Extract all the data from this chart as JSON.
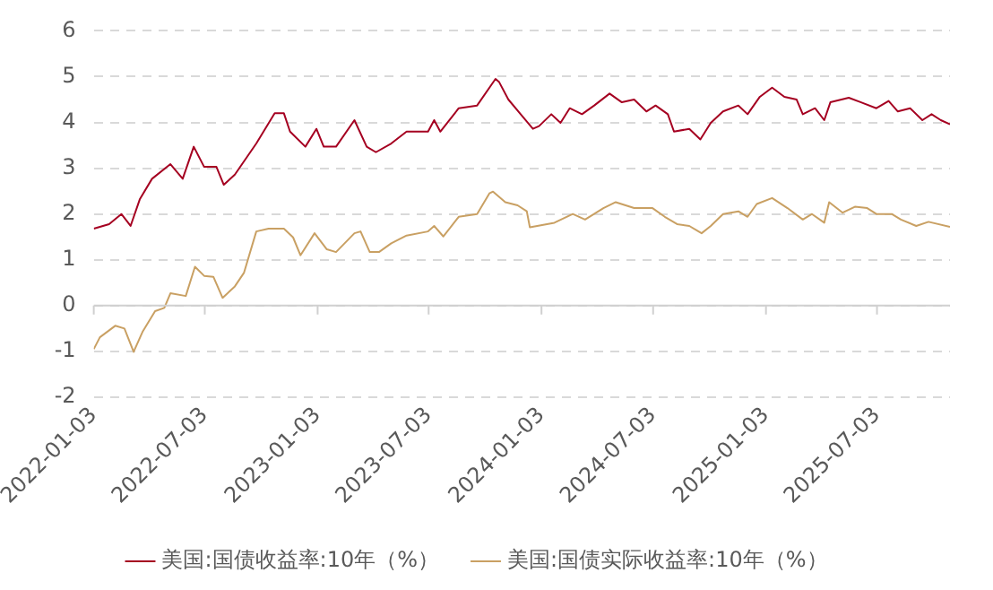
{
  "chart_data": {
    "type": "line",
    "xlim": [
      "2022-01-03",
      "2025-10-30"
    ],
    "xticks": [
      "2022-01-03",
      "2022-07-03",
      "2023-01-03",
      "2023-07-03",
      "2024-01-03",
      "2024-07-03",
      "2025-01-03",
      "2025-07-03"
    ],
    "ylim": [
      -2,
      6
    ],
    "yticks": [
      -2,
      -1,
      0,
      1,
      2,
      3,
      4,
      5,
      6
    ],
    "grid": "y",
    "legend": "bottom",
    "marker": "none",
    "line_style": "solid",
    "series": [
      {
        "name": "美国:国债收益率:10年（%）",
        "color": "#a50021",
        "x": [
          "2022-01-03",
          "2022-01-28",
          "2022-02-17",
          "2022-03-04",
          "2022-03-19",
          "2022-04-08",
          "2022-05-08",
          "2022-05-28",
          "2022-06-15",
          "2022-07-02",
          "2022-07-22",
          "2022-08-03",
          "2022-08-21",
          "2022-09-25",
          "2022-10-25",
          "2022-11-09",
          "2022-11-19",
          "2022-12-14",
          "2023-01-01",
          "2023-01-13",
          "2023-02-02",
          "2023-03-04",
          "2023-03-24",
          "2023-04-08",
          "2023-05-03",
          "2023-05-28",
          "2023-07-02",
          "2023-07-12",
          "2023-07-22",
          "2023-08-21",
          "2023-09-20",
          "2023-10-20",
          "2023-10-26",
          "2023-11-10",
          "2023-11-30",
          "2023-12-20",
          "2023-12-30",
          "2024-01-19",
          "2024-02-03",
          "2024-02-18",
          "2024-03-09",
          "2024-03-29",
          "2024-04-23",
          "2024-05-13",
          "2024-06-02",
          "2024-06-22",
          "2024-07-07",
          "2024-07-27",
          "2024-08-06",
          "2024-08-31",
          "2024-09-18",
          "2024-10-05",
          "2024-10-25",
          "2024-11-19",
          "2024-12-04",
          "2024-12-24",
          "2025-01-13",
          "2025-02-02",
          "2025-02-22",
          "2025-03-04",
          "2025-03-24",
          "2025-04-08",
          "2025-04-18",
          "2025-05-18",
          "2025-06-07",
          "2025-07-02",
          "2025-07-22",
          "2025-08-06",
          "2025-08-26",
          "2025-09-15",
          "2025-09-30",
          "2025-10-15",
          "2025-10-30"
        ],
        "values": [
          1.68,
          1.78,
          2.0,
          1.74,
          2.32,
          2.77,
          3.09,
          2.77,
          3.47,
          3.03,
          3.03,
          2.64,
          2.86,
          3.54,
          4.2,
          4.2,
          3.8,
          3.47,
          3.86,
          3.47,
          3.47,
          4.05,
          3.47,
          3.35,
          3.54,
          3.8,
          3.8,
          4.05,
          3.8,
          4.31,
          4.37,
          4.95,
          4.88,
          4.5,
          4.18,
          3.86,
          3.92,
          4.18,
          3.99,
          4.31,
          4.18,
          4.37,
          4.63,
          4.44,
          4.5,
          4.24,
          4.37,
          4.18,
          3.8,
          3.86,
          3.63,
          3.99,
          4.24,
          4.37,
          4.18,
          4.56,
          4.76,
          4.56,
          4.5,
          4.18,
          4.31,
          4.05,
          4.44,
          4.54,
          4.44,
          4.31,
          4.47,
          4.24,
          4.31,
          4.05,
          4.18,
          4.05,
          3.96
        ]
      },
      {
        "name": "美国:国债实际收益率:10年（%）",
        "color": "#c9a063",
        "x": [
          "2022-01-03",
          "2022-01-13",
          "2022-02-07",
          "2022-02-22",
          "2022-03-09",
          "2022-03-24",
          "2022-04-13",
          "2022-04-28",
          "2022-05-08",
          "2022-06-02",
          "2022-06-17",
          "2022-07-02",
          "2022-07-17",
          "2022-08-01",
          "2022-08-21",
          "2022-09-05",
          "2022-09-25",
          "2022-10-15",
          "2022-11-09",
          "2022-11-24",
          "2022-12-06",
          "2022-12-29",
          "2023-01-18",
          "2023-02-02",
          "2023-03-04",
          "2023-03-14",
          "2023-03-29",
          "2023-04-13",
          "2023-05-03",
          "2023-05-28",
          "2023-07-02",
          "2023-07-12",
          "2023-07-27",
          "2023-08-21",
          "2023-09-20",
          "2023-10-10",
          "2023-10-16",
          "2023-11-05",
          "2023-11-25",
          "2023-12-10",
          "2023-12-15",
          "2024-01-24",
          "2024-02-23",
          "2024-03-14",
          "2024-04-13",
          "2024-05-03",
          "2024-06-02",
          "2024-07-02",
          "2024-07-22",
          "2024-08-11",
          "2024-08-31",
          "2024-09-20",
          "2024-10-05",
          "2024-10-25",
          "2024-11-19",
          "2024-12-04",
          "2024-12-19",
          "2025-01-13",
          "2025-02-07",
          "2025-03-04",
          "2025-03-19",
          "2025-04-08",
          "2025-04-16",
          "2025-05-08",
          "2025-05-28",
          "2025-06-17",
          "2025-07-02",
          "2025-07-27",
          "2025-08-11",
          "2025-09-05",
          "2025-09-25",
          "2025-10-30"
        ],
        "values": [
          -0.95,
          -0.69,
          -0.44,
          -0.5,
          -1.01,
          -0.56,
          -0.12,
          -0.05,
          0.27,
          0.21,
          0.85,
          0.65,
          0.63,
          0.17,
          0.42,
          0.72,
          1.62,
          1.68,
          1.68,
          1.49,
          1.1,
          1.58,
          1.23,
          1.17,
          1.58,
          1.62,
          1.17,
          1.17,
          1.36,
          1.53,
          1.62,
          1.74,
          1.51,
          1.94,
          2.0,
          2.45,
          2.49,
          2.26,
          2.19,
          2.06,
          1.71,
          1.81,
          2.0,
          1.88,
          2.13,
          2.26,
          2.13,
          2.13,
          1.94,
          1.78,
          1.74,
          1.58,
          1.74,
          2.0,
          2.06,
          1.94,
          2.22,
          2.35,
          2.13,
          1.88,
          2.0,
          1.81,
          2.26,
          2.03,
          2.16,
          2.13,
          2.0,
          2.0,
          1.88,
          1.74,
          1.83,
          1.72
        ]
      }
    ]
  }
}
